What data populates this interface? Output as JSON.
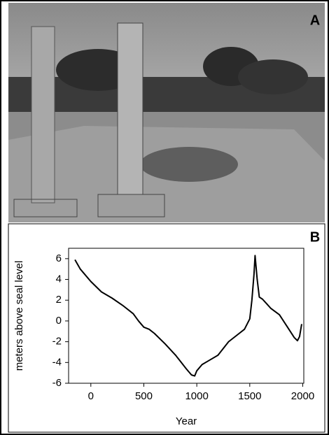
{
  "panel_a": {
    "label": "A"
  },
  "chart_data": {
    "type": "line",
    "panel_label": "B",
    "x_label": "Year",
    "y_label": "meters above seal level",
    "x": [
      -150,
      -100,
      0,
      100,
      200,
      300,
      400,
      450,
      500,
      550,
      600,
      700,
      800,
      900,
      950,
      980,
      1000,
      1050,
      1100,
      1200,
      1300,
      1400,
      1450,
      1500,
      1520,
      1540,
      1550,
      1570,
      1590,
      1620,
      1700,
      1780,
      1850,
      1920,
      1950,
      1970,
      1990
    ],
    "series": [
      {
        "color": "#000000",
        "values": [
          5.9,
          5.0,
          3.8,
          2.8,
          2.2,
          1.5,
          0.7,
          0,
          -0.6,
          -0.8,
          -1.2,
          -2.2,
          -3.3,
          -4.6,
          -5.2,
          -5.3,
          -4.8,
          -4.2,
          -3.9,
          -3.3,
          -2.0,
          -1.2,
          -0.8,
          0.2,
          2.0,
          4.5,
          6.3,
          4.0,
          2.3,
          2.1,
          1.2,
          0.6,
          -0.5,
          -1.6,
          -1.9,
          -1.5,
          -0.3
        ]
      }
    ],
    "xlim": [
      -210,
      2010
    ],
    "ylim": [
      -6,
      7
    ],
    "xticks": [
      0,
      500,
      1000,
      1500,
      2000
    ],
    "yticks": [
      -6,
      -4,
      -2,
      0,
      2,
      4,
      6
    ]
  }
}
